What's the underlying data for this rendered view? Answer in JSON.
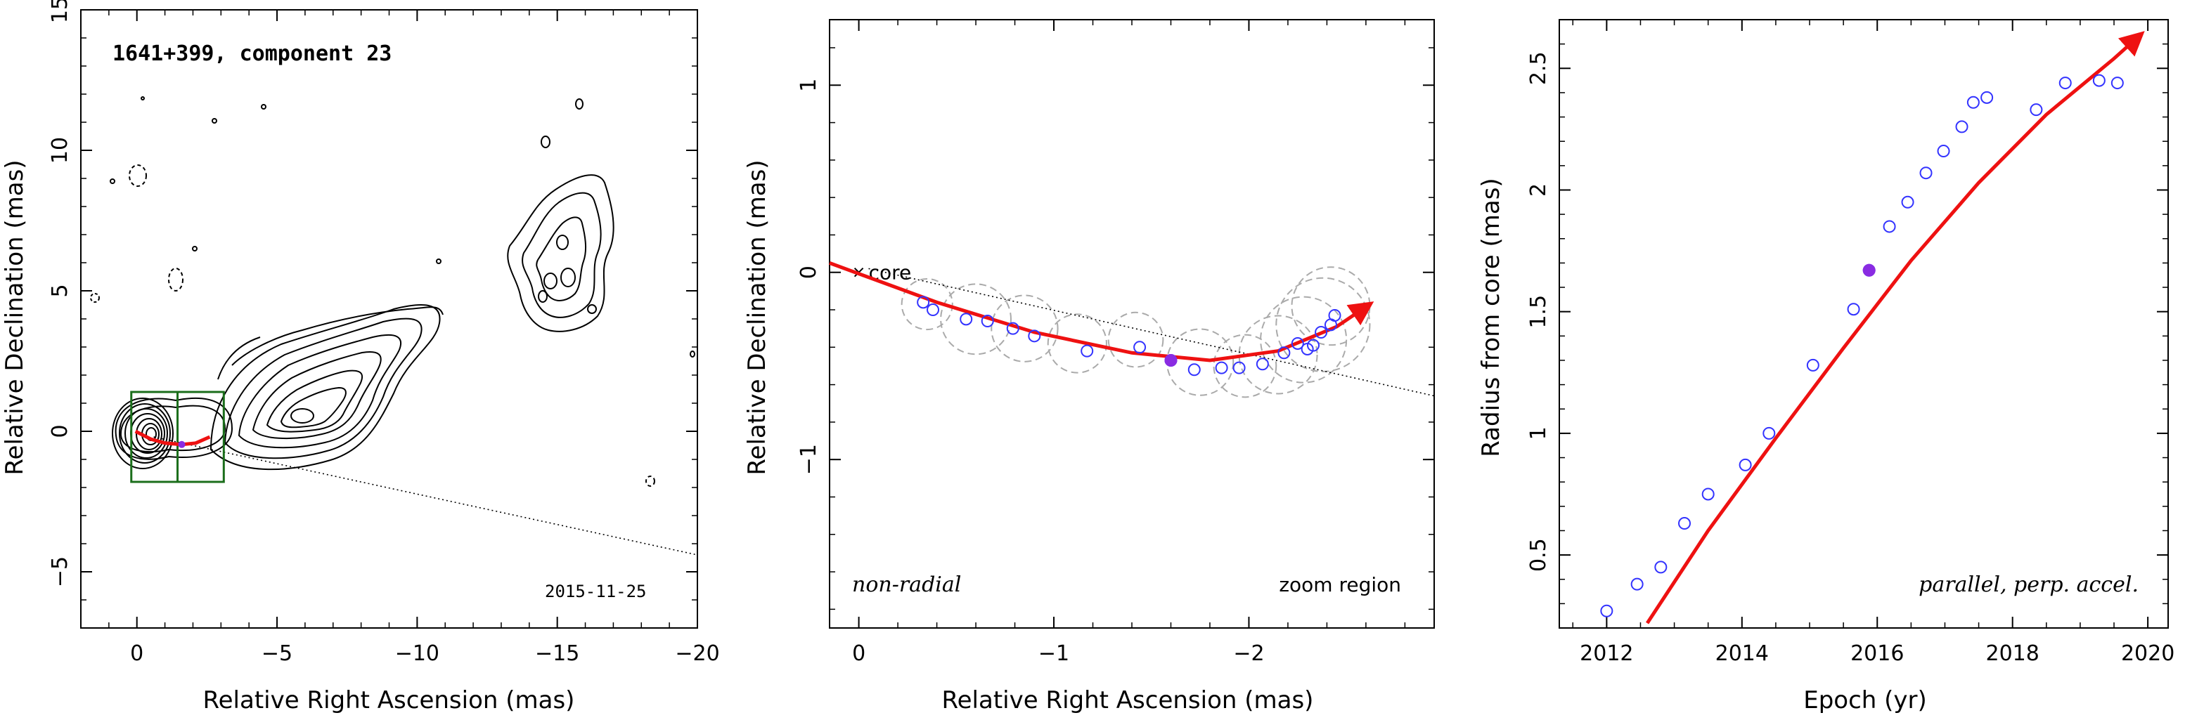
{
  "chart_data": [
    {
      "type": "scatter",
      "panel": "contour map",
      "title": "1641+399, component 23",
      "date_label": "2015-11-25",
      "xlabel": "Relative Right Ascension (mas)",
      "ylabel": "Relative Declination (mas)",
      "xlim": [
        2,
        -20
      ],
      "ylim": [
        -7,
        15
      ],
      "xticks": [
        0,
        -5,
        -10,
        -15,
        -20
      ],
      "yticks": [
        -5,
        0,
        5,
        10,
        15
      ],
      "xtick_labels": [
        "0",
        "−5",
        "−10",
        "−15",
        "−20"
      ],
      "ytick_labels": [
        "−5",
        "0",
        "5",
        "10",
        "15"
      ],
      "zoom_box": {
        "x": [
          0.2,
          -3.1
        ],
        "y": [
          -1.8,
          1.4
        ]
      },
      "trajectory": {
        "x": [
          0.05,
          -0.5,
          -1.0,
          -1.6,
          -2.1,
          -2.6
        ],
        "y": [
          0.0,
          -0.28,
          -0.42,
          -0.47,
          -0.42,
          -0.2
        ]
      },
      "marker": {
        "x": -1.6,
        "y": -0.47
      },
      "radial_line": {
        "x": [
          -0.6,
          -20
        ],
        "y": [
          -0.2,
          -4.4
        ]
      },
      "colors": {
        "trajectory": "#ee1111",
        "box": "#1b6e1b",
        "marker": "#8a2be2"
      }
    },
    {
      "type": "scatter",
      "panel": "zoom region",
      "annotation_left": "non-radial",
      "annotation_right": "zoom region",
      "core_label": "core",
      "xlabel": "Relative Right Ascension (mas)",
      "ylabel": "Relative Declination (mas)",
      "xlim": [
        0.15,
        -2.95
      ],
      "ylim": [
        -1.9,
        1.35
      ],
      "xticks": [
        0,
        -1,
        -2
      ],
      "yticks": [
        -1,
        0,
        1
      ],
      "xtick_labels": [
        "0",
        "−1",
        "−2"
      ],
      "ytick_labels": [
        "−1",
        "0",
        "1"
      ],
      "points": {
        "x": [
          -0.33,
          -0.38,
          -0.55,
          -0.66,
          -0.79,
          -0.9,
          -1.17,
          -1.44,
          -1.6,
          -1.72,
          -1.86,
          -1.95,
          -2.07,
          -2.18,
          -2.25,
          -2.3,
          -2.33,
          -2.37,
          -2.42,
          -2.44
        ],
        "y": [
          -0.16,
          -0.2,
          -0.25,
          -0.26,
          -0.3,
          -0.34,
          -0.42,
          -0.4,
          -0.47,
          -0.52,
          -0.51,
          -0.51,
          -0.49,
          -0.43,
          -0.38,
          -0.41,
          -0.39,
          -0.32,
          -0.28,
          -0.23
        ]
      },
      "marker": {
        "x": -1.6,
        "y": -0.47
      },
      "uncertainty_circles": [
        {
          "x": -0.35,
          "y": -0.17,
          "r": 0.13
        },
        {
          "x": -0.6,
          "y": -0.25,
          "r": 0.18
        },
        {
          "x": -0.85,
          "y": -0.3,
          "r": 0.17
        },
        {
          "x": -1.12,
          "y": -0.38,
          "r": 0.15
        },
        {
          "x": -1.42,
          "y": -0.36,
          "r": 0.14
        },
        {
          "x": -1.75,
          "y": -0.48,
          "r": 0.17
        },
        {
          "x": -1.98,
          "y": -0.5,
          "r": 0.16
        },
        {
          "x": -2.15,
          "y": -0.44,
          "r": 0.2
        },
        {
          "x": -2.28,
          "y": -0.36,
          "r": 0.22
        },
        {
          "x": -2.38,
          "y": -0.28,
          "r": 0.24
        },
        {
          "x": -2.42,
          "y": -0.18,
          "r": 0.2
        }
      ],
      "trajectory": {
        "x": [
          0.15,
          -0.4,
          -0.9,
          -1.4,
          -1.8,
          -2.15,
          -2.45,
          -2.62
        ],
        "y": [
          0.05,
          -0.16,
          -0.32,
          -0.43,
          -0.47,
          -0.42,
          -0.29,
          -0.17
        ]
      },
      "radial_line": {
        "x": [
          -0.05,
          -2.95
        ],
        "y": [
          0.02,
          -0.66
        ]
      },
      "colors": {
        "points": "#3333ff",
        "trajectory": "#ee1111",
        "circles": "#aaaaaa",
        "marker": "#8a2be2"
      }
    },
    {
      "type": "scatter",
      "panel": "radius vs epoch",
      "annotation": "parallel, perp. accel.",
      "xlabel": "Epoch (yr)",
      "ylabel": "Radius from core (mas)",
      "xlim": [
        2011.3,
        2020.3
      ],
      "ylim": [
        0.2,
        2.7
      ],
      "xticks": [
        2012,
        2014,
        2016,
        2018,
        2020
      ],
      "yticks": [
        0.5,
        1,
        1.5,
        2,
        2.5
      ],
      "xtick_labels": [
        "2012",
        "2014",
        "2016",
        "2018",
        "2020"
      ],
      "ytick_labels": [
        "0.5",
        "1",
        "1.5",
        "2",
        "2.5"
      ],
      "points": {
        "x": [
          2012.0,
          2012.45,
          2012.8,
          2013.15,
          2013.5,
          2014.05,
          2014.4,
          2015.05,
          2015.65,
          2015.88,
          2016.18,
          2016.45,
          2016.72,
          2016.98,
          2017.25,
          2017.42,
          2017.62,
          2018.35,
          2018.78,
          2019.28,
          2019.55
        ],
        "y": [
          0.27,
          0.38,
          0.45,
          0.63,
          0.75,
          0.87,
          1.0,
          1.28,
          1.51,
          1.67,
          1.85,
          1.95,
          2.07,
          2.16,
          2.26,
          2.36,
          2.38,
          2.33,
          2.44,
          2.45,
          2.44
        ]
      },
      "marker": {
        "x": 2015.88,
        "y": 1.67
      },
      "fit_curve": {
        "x": [
          2012.6,
          2013.5,
          2014.5,
          2015.5,
          2016.5,
          2017.5,
          2018.5,
          2019.5,
          2019.9
        ],
        "y": [
          0.22,
          0.6,
          0.98,
          1.35,
          1.71,
          2.03,
          2.31,
          2.54,
          2.64
        ]
      },
      "colors": {
        "points": "#3333ff",
        "fit": "#ee1111",
        "marker": "#8a2be2"
      }
    }
  ]
}
